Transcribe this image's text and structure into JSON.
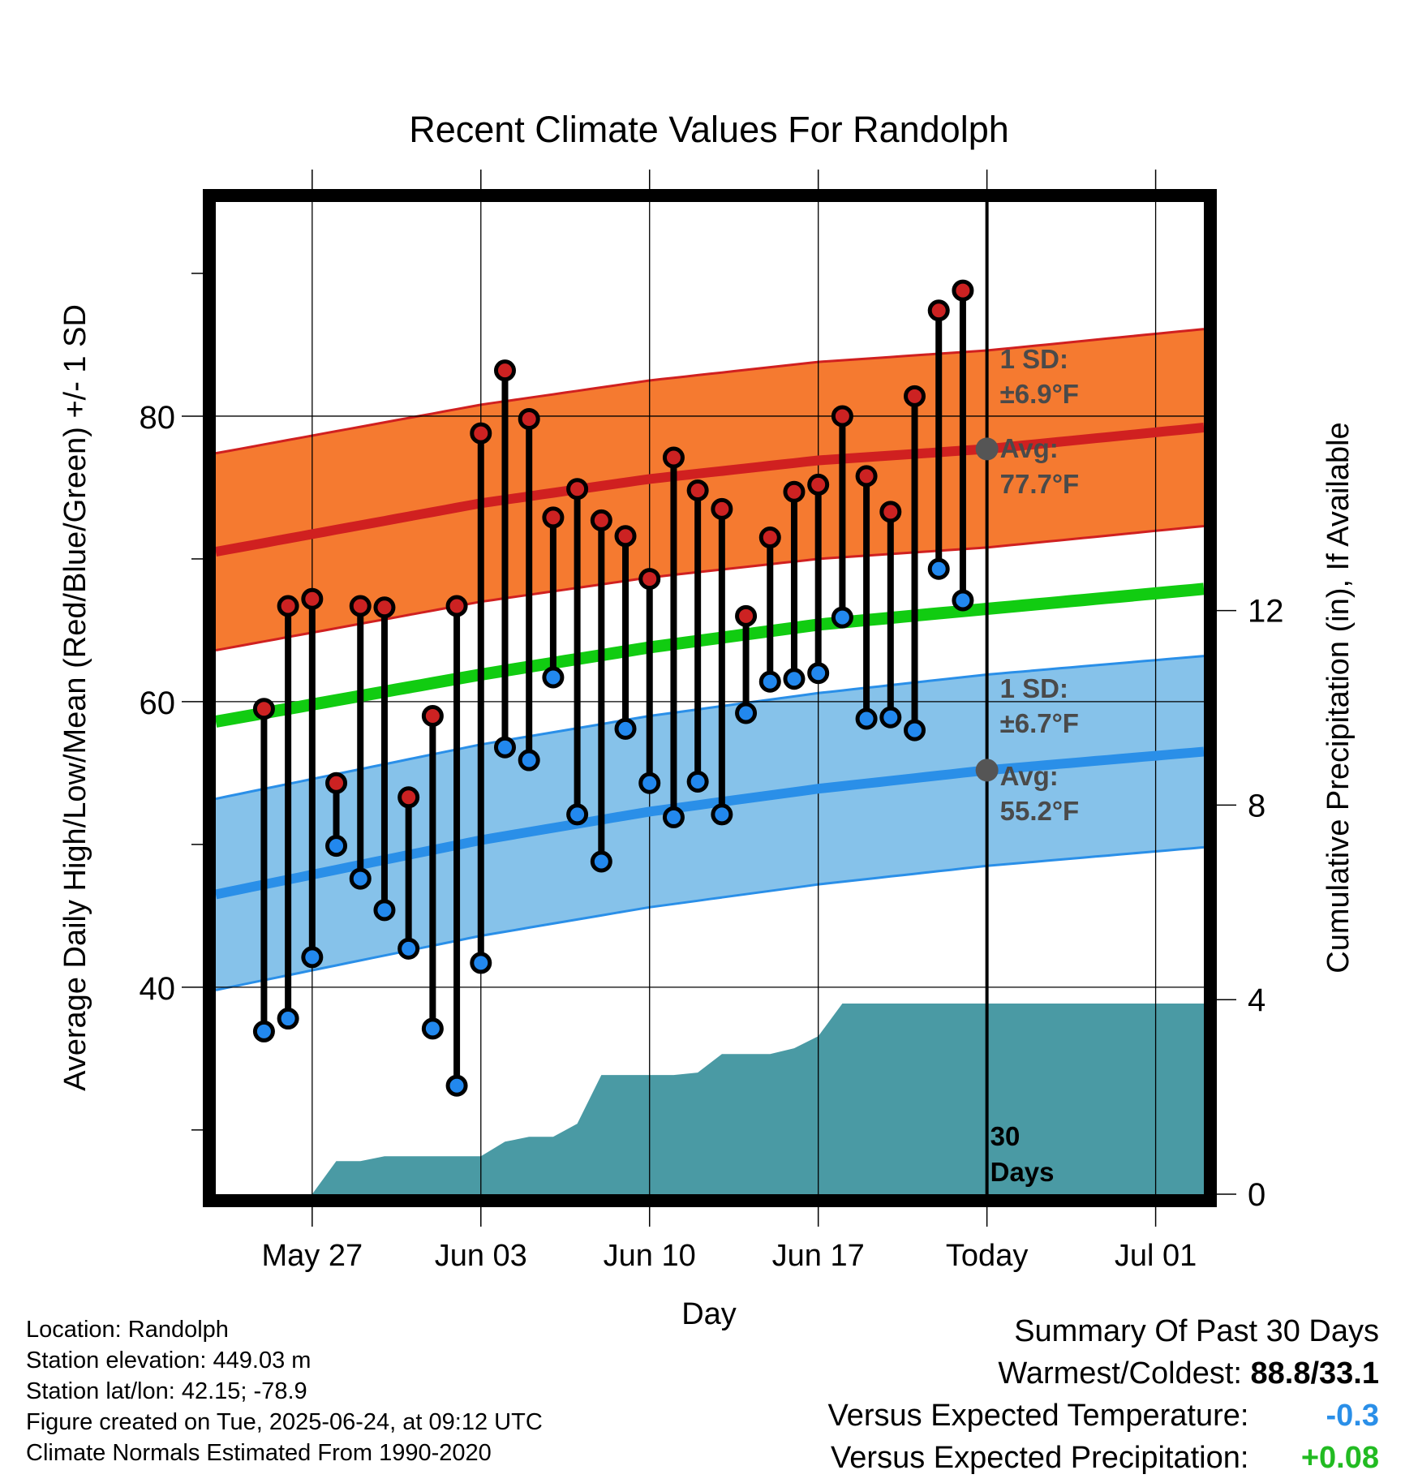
{
  "chart_data": {
    "type": "line",
    "title": "Recent Climate Values For Randolph",
    "xlabel": "Day",
    "ylabel": "Average Daily High/Low/Mean (Red/Blue/Green) +/- 1 SD",
    "y2label": "Cumulative Precipitation (in), If Available",
    "x_ticks": [
      {
        "date": "2025-05-27",
        "label": "May 27"
      },
      {
        "date": "2025-06-03",
        "label": "Jun 03"
      },
      {
        "date": "2025-06-10",
        "label": "Jun 10"
      },
      {
        "date": "2025-06-17",
        "label": "Jun 17"
      },
      {
        "date": "2025-06-24",
        "label": "Today"
      },
      {
        "date": "2025-07-01",
        "label": "Jul 01"
      }
    ],
    "xlim": [
      "2025-05-23",
      "2025-07-03"
    ],
    "ylim": [
      25.5,
      95
    ],
    "y_ticks": [
      40,
      60,
      80
    ],
    "y2lim": [
      0,
      20.4
    ],
    "y2_ticks": [
      0,
      4,
      8,
      12
    ],
    "grid": true,
    "today": "2025-06-24",
    "normals": {
      "dates": [
        "2025-05-23",
        "2025-06-03",
        "2025-06-10",
        "2025-06-17",
        "2025-06-24",
        "2025-07-03"
      ],
      "high_avg": [
        70.5,
        73.9,
        75.6,
        76.9,
        77.7,
        79.2
      ],
      "high_sd": 6.9,
      "low_avg": [
        46.5,
        50.3,
        52.3,
        53.9,
        55.2,
        56.5
      ],
      "low_sd": 6.7,
      "mean_avg": [
        58.6,
        61.9,
        63.8,
        65.4,
        66.5,
        67.9
      ]
    },
    "annotations": {
      "high_sd_label": "1 SD:",
      "high_sd_value": "±6.9°F",
      "high_avg_label": "Avg:",
      "high_avg_value": "77.7°F",
      "low_sd_label": "1 SD:",
      "low_sd_value": "±6.7°F",
      "low_avg_label": "Avg:",
      "low_avg_value": "55.2°F",
      "days_count": "30",
      "days_label": "Days"
    },
    "series": [
      {
        "name": "High",
        "color": "#cc2222",
        "dates": [
          "2025-05-25",
          "2025-05-26",
          "2025-05-27",
          "2025-05-28",
          "2025-05-29",
          "2025-05-30",
          "2025-05-31",
          "2025-06-01",
          "2025-06-02",
          "2025-06-03",
          "2025-06-04",
          "2025-06-05",
          "2025-06-06",
          "2025-06-07",
          "2025-06-08",
          "2025-06-09",
          "2025-06-10",
          "2025-06-11",
          "2025-06-12",
          "2025-06-13",
          "2025-06-14",
          "2025-06-15",
          "2025-06-16",
          "2025-06-17",
          "2025-06-18",
          "2025-06-19",
          "2025-06-20",
          "2025-06-21",
          "2025-06-22",
          "2025-06-23"
        ],
        "values": [
          59.5,
          66.7,
          67.2,
          54.3,
          66.7,
          66.6,
          53.3,
          59.0,
          66.7,
          78.8,
          83.2,
          79.8,
          72.9,
          74.9,
          72.7,
          71.6,
          68.6,
          77.1,
          74.8,
          73.5,
          66.0,
          71.5,
          74.7,
          75.2,
          80.0,
          75.8,
          73.3,
          81.4,
          87.4,
          88.8
        ]
      },
      {
        "name": "Low",
        "color": "#2288ee",
        "dates": [
          "2025-05-25",
          "2025-05-26",
          "2025-05-27",
          "2025-05-28",
          "2025-05-29",
          "2025-05-30",
          "2025-05-31",
          "2025-06-01",
          "2025-06-02",
          "2025-06-03",
          "2025-06-04",
          "2025-06-05",
          "2025-06-06",
          "2025-06-07",
          "2025-06-08",
          "2025-06-09",
          "2025-06-10",
          "2025-06-11",
          "2025-06-12",
          "2025-06-13",
          "2025-06-14",
          "2025-06-15",
          "2025-06-16",
          "2025-06-17",
          "2025-06-18",
          "2025-06-19",
          "2025-06-20",
          "2025-06-21",
          "2025-06-22",
          "2025-06-23"
        ],
        "values": [
          36.9,
          37.8,
          42.1,
          49.9,
          47.6,
          45.4,
          42.7,
          37.1,
          33.1,
          41.7,
          56.8,
          55.9,
          61.7,
          52.1,
          48.8,
          58.1,
          54.3,
          51.9,
          54.4,
          52.1,
          59.2,
          61.4,
          61.6,
          62.0,
          65.9,
          58.8,
          58.9,
          58.0,
          69.3,
          67.1
        ]
      },
      {
        "name": "Cumulative Precipitation",
        "color": "#4a9aa4",
        "dates": [
          "2025-05-27",
          "2025-05-28",
          "2025-05-29",
          "2025-05-30",
          "2025-05-31",
          "2025-06-01",
          "2025-06-02",
          "2025-06-03",
          "2025-06-04",
          "2025-06-05",
          "2025-06-06",
          "2025-06-07",
          "2025-06-08",
          "2025-06-09",
          "2025-06-10",
          "2025-06-11",
          "2025-06-12",
          "2025-06-13",
          "2025-06-14",
          "2025-06-15",
          "2025-06-16",
          "2025-06-17",
          "2025-06-18",
          "2025-06-19",
          "2025-06-20",
          "2025-06-21",
          "2025-06-22",
          "2025-06-23",
          "2025-07-03"
        ],
        "values": [
          0.0,
          0.68,
          0.68,
          0.78,
          0.78,
          0.78,
          0.78,
          0.78,
          1.08,
          1.18,
          1.18,
          1.45,
          2.45,
          2.45,
          2.45,
          2.45,
          2.5,
          2.88,
          2.88,
          2.88,
          3.0,
          3.25,
          3.92,
          3.92,
          3.92,
          3.92,
          3.92,
          3.92,
          3.92
        ]
      }
    ]
  },
  "info": {
    "location": "Location: Randolph",
    "elevation": "Station elevation: 449.03 m",
    "latlon": "Station lat/lon: 42.15; -78.9",
    "created": "Figure created on Tue, 2025-06-24, at 09:12 UTC",
    "normals": "Climate Normals Estimated From 1990-2020"
  },
  "summary": {
    "title": "Summary Of Past 30 Days",
    "warm_cold_label": "Warmest/Coldest:",
    "warm_cold_value": "88.8/33.1",
    "temp_label": "Versus Expected Temperature:",
    "temp_value": "-0.3",
    "temp_color": "#2a8fe8",
    "precip_label": "Versus Expected Precipitation:",
    "precip_value": "+0.08",
    "precip_color": "#22bb22"
  }
}
